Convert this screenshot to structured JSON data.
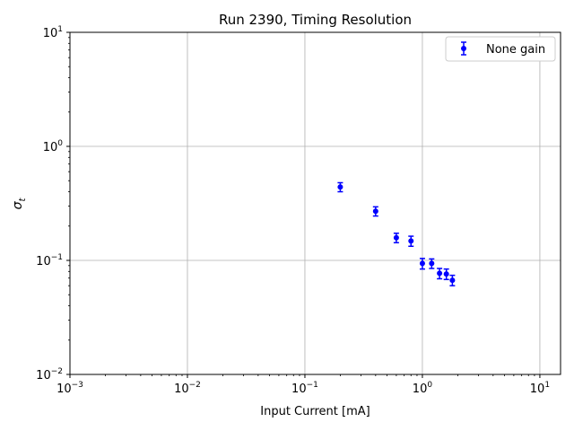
{
  "chart_data": {
    "type": "scatter",
    "title": "Run 2390, Timing Resolution",
    "xlabel": "Input Current [mA]",
    "ylabel": "σ",
    "ylabel_sub": "t",
    "xscale": "log",
    "yscale": "log",
    "xlim": [
      0.001,
      15
    ],
    "ylim": [
      0.01,
      10
    ],
    "grid": true,
    "legend_position": "top-right",
    "x_ticks": [
      {
        "value": 0.001,
        "base": "10",
        "exp": "−3"
      },
      {
        "value": 0.01,
        "base": "10",
        "exp": "−2"
      },
      {
        "value": 0.1,
        "base": "10",
        "exp": "−1"
      },
      {
        "value": 1,
        "base": "10",
        "exp": "0"
      },
      {
        "value": 10,
        "base": "10",
        "exp": "1"
      }
    ],
    "y_ticks": [
      {
        "value": 0.01,
        "base": "10",
        "exp": "−2"
      },
      {
        "value": 0.1,
        "base": "10",
        "exp": "−1"
      },
      {
        "value": 1,
        "base": "10",
        "exp": "0"
      },
      {
        "value": 10,
        "base": "10",
        "exp": "1"
      }
    ],
    "series": [
      {
        "name": "None gain",
        "color": "#0000ff",
        "x": [
          0.2,
          0.4,
          0.6,
          0.8,
          1.0,
          1.2,
          1.4,
          1.6,
          1.8
        ],
        "y": [
          0.44,
          0.27,
          0.158,
          0.148,
          0.094,
          0.094,
          0.077,
          0.076,
          0.067
        ],
        "yerr": [
          0.04,
          0.025,
          0.015,
          0.015,
          0.01,
          0.009,
          0.008,
          0.008,
          0.007
        ]
      }
    ]
  }
}
